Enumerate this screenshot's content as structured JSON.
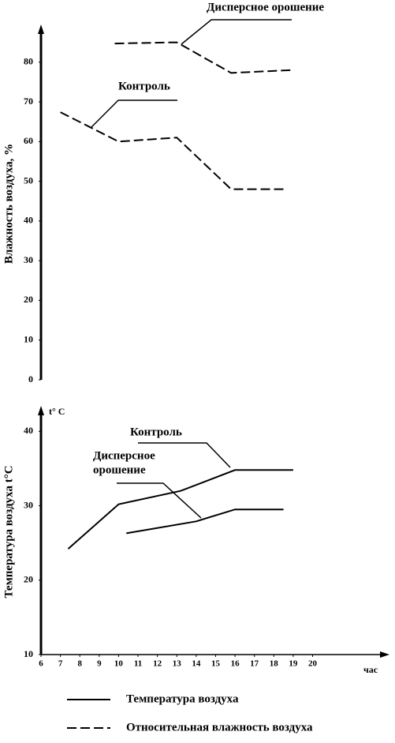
{
  "chart_data": [
    {
      "type": "line",
      "ylabel": "Влажность воздуха, %",
      "xlim": [
        6,
        23.8
      ],
      "ylim": [
        0,
        88.7
      ],
      "yticks": [
        0,
        10,
        20,
        30,
        40,
        50,
        60,
        70,
        80
      ],
      "series": [
        {
          "name": "Дисперсное орошение",
          "color": "#000",
          "dash": true,
          "x": [
            9.8,
            13,
            15.8,
            18.9
          ],
          "values": [
            84.7,
            85,
            77.3,
            78
          ]
        },
        {
          "name": "Контроль",
          "color": "#000",
          "dash": true,
          "x": [
            7,
            10,
            13,
            15.8,
            18.6
          ],
          "values": [
            67.4,
            60,
            61,
            48,
            48
          ]
        }
      ]
    },
    {
      "type": "line",
      "ylabel": "Температура воздуха t°C",
      "y_unit": "t° C",
      "xlabel": "час",
      "xlim": [
        6,
        23.8
      ],
      "ylim": [
        10,
        43
      ],
      "xticks": [
        6,
        7,
        8,
        9,
        10,
        11,
        12,
        13,
        14,
        15,
        16,
        17,
        18,
        19,
        20
      ],
      "yticks": [
        10,
        20,
        30,
        40
      ],
      "series": [
        {
          "name": "Контроль",
          "color": "#000",
          "dash": false,
          "x": [
            7.4,
            10,
            13.2,
            16,
            19
          ],
          "values": [
            24.2,
            30.2,
            32,
            34.8,
            34.8
          ]
        },
        {
          "name_lines": [
            "Дисперсное",
            "орошение"
          ],
          "color": "#000",
          "dash": false,
          "x": [
            10.4,
            14,
            16,
            18.5
          ],
          "values": [
            26.3,
            27.9,
            29.5,
            29.5
          ]
        }
      ]
    }
  ],
  "legend": [
    {
      "label": "Температура воздуха",
      "dash": false
    },
    {
      "label": "Относительная влажность воздуха",
      "dash": true
    }
  ]
}
